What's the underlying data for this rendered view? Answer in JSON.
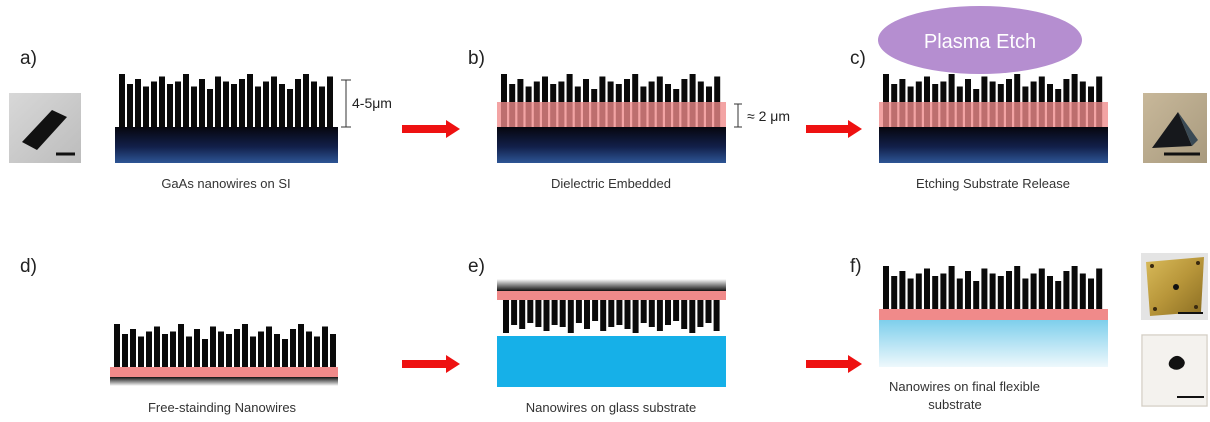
{
  "panels": {
    "a": {
      "letter": "a)",
      "caption": "GaAs nanowires on SI",
      "dimension": "4-5μm"
    },
    "b": {
      "letter": "b)",
      "caption": "Dielectric Embedded",
      "dimension": "≈ 2 μm"
    },
    "c": {
      "letter": "c)",
      "caption": "Etching Substrate Release",
      "process": "Plasma Etch"
    },
    "d": {
      "letter": "d)",
      "caption": "Free-stainding Nanowires"
    },
    "e": {
      "letter": "e)",
      "caption": "Nanowires on glass substrate"
    },
    "f": {
      "letter": "f)",
      "caption_lines": [
        "Nanowires on final flexible",
        "substrate"
      ]
    }
  },
  "colors": {
    "nanowire": "#0a0a0a",
    "dielectric": "#f08a8a",
    "silicon_top": "#0a0a14",
    "silicon_bottom": "#2a4a8a",
    "glass": "#16b0e8",
    "flexible_top": "#8cd6ef",
    "flexible_bottom": "#e8f6fb",
    "arrow": "#ee1111",
    "plasma": "#b58ed0"
  },
  "icons": [
    "substrate-chip-photo-icon",
    "released-film-photo-icon",
    "gold-substrate-photo-icon",
    "flexible-substrate-photo-icon"
  ]
}
